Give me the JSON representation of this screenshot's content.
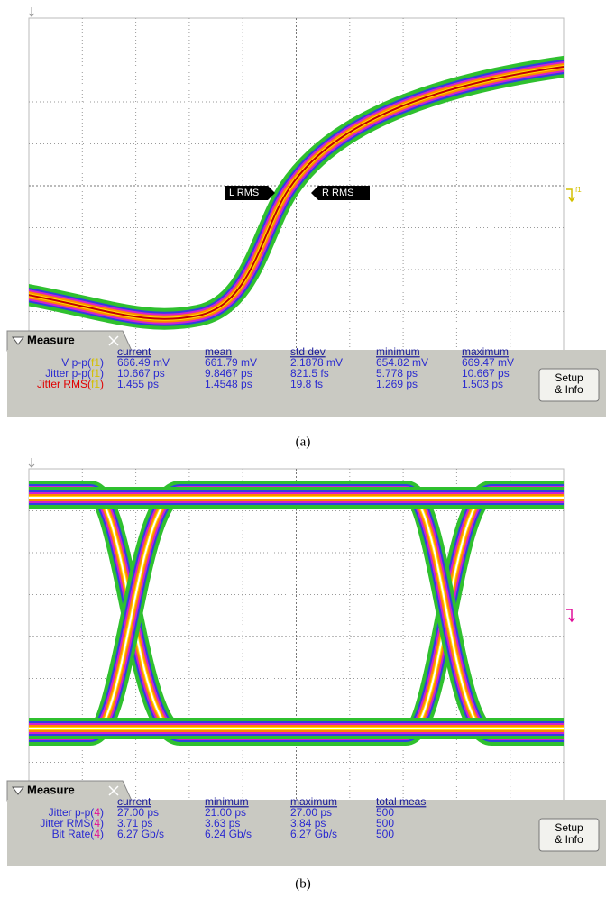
{
  "panels": [
    {
      "markers": [
        "L RMS",
        "R RMS"
      ],
      "trace_label": "f1",
      "measure": {
        "title": "Measure",
        "columns": [
          "current",
          "mean",
          "std dev",
          "minimum",
          "maximum"
        ],
        "rows": [
          {
            "label": [
              "V p-p(",
              "f1",
              ")"
            ],
            "color": "#2a2ad0",
            "source_color": "#d4c000",
            "cells": [
              "666.49 mV",
              "661.79 mV",
              "2.1878 mV",
              "654.82 mV",
              "669.47 mV"
            ]
          },
          {
            "label": [
              "Jitter p-p(",
              "f1",
              ")"
            ],
            "color": "#2a2ad0",
            "source_color": "#d4c000",
            "cells": [
              "10.667 ps",
              "9.8467 ps",
              "821.5 fs",
              "5.778 ps",
              "10.667 ps"
            ]
          },
          {
            "label": [
              "Jitter RMS(",
              "f1",
              ")"
            ],
            "color": "#e00000",
            "source_color": "#d4c000",
            "cells": [
              "1.455 ps",
              "1.4548 ps",
              "19.8 fs",
              "1.269 ps",
              "1.503 ps"
            ]
          }
        ],
        "button": [
          "Setup",
          "& Info"
        ]
      },
      "caption": "(a)"
    },
    {
      "markers": [],
      "trace_label": null,
      "measure": {
        "title": "Measure",
        "columns": [
          "current",
          "minimum",
          "maximum",
          "total meas"
        ],
        "rows": [
          {
            "label": [
              "Jitter p-p(",
              "4",
              ")"
            ],
            "color": "#2a2ad0",
            "source_color": "#e0109a",
            "cells": [
              "27.00 ps",
              "21.00 ps",
              "27.00 ps",
              "500"
            ]
          },
          {
            "label": [
              "Jitter RMS(",
              "4",
              ")"
            ],
            "color": "#2a2ad0",
            "source_color": "#e0109a",
            "cells": [
              "3.71 ps",
              "3.63 ps",
              "3.84 ps",
              "500"
            ]
          },
          {
            "label": [
              "Bit Rate(",
              "4",
              ")"
            ],
            "color": "#2a2ad0",
            "source_color": "#e0109a",
            "cells": [
              "6.27 Gb/s",
              "6.24 Gb/s",
              "6.27 Gb/s",
              "500"
            ]
          }
        ],
        "button": [
          "Setup",
          "& Info"
        ]
      },
      "caption": "(b)"
    }
  ]
}
